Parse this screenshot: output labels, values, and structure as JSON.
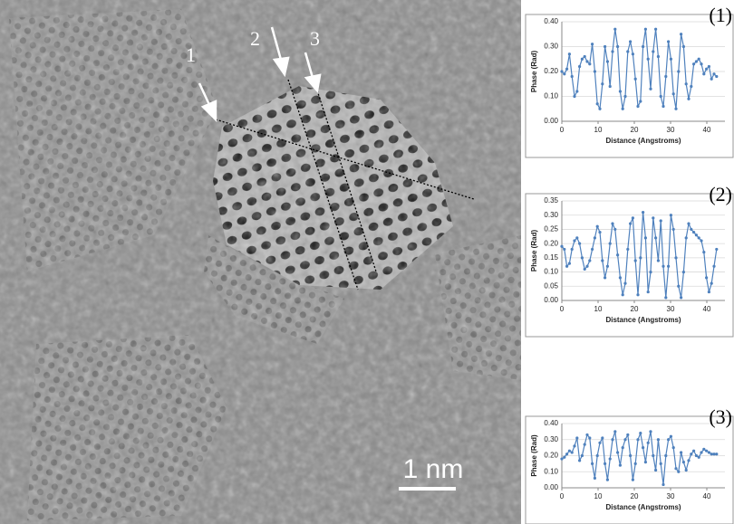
{
  "image": {
    "line_labels": [
      "1",
      "2",
      "3"
    ],
    "scale_bar": "1 nm"
  },
  "chart_data": [
    {
      "type": "line",
      "panel_label": "(1)",
      "x_label": "Distance (Angstroms)",
      "y_label": "Phase (Rad)",
      "xlim": [
        0,
        45
      ],
      "xticks": [
        0,
        10,
        20,
        30,
        40
      ],
      "ylim": [
        0,
        0.4
      ],
      "yticks": [
        {
          "value": 0,
          "label": "0.00"
        },
        {
          "value": 0.1,
          "label": "0.10"
        },
        {
          "value": 0.2,
          "label": "0.20"
        },
        {
          "value": 0.3,
          "label": "0.30"
        },
        {
          "value": 0.4,
          "label": "0.40"
        }
      ],
      "x": [
        0,
        0.7,
        1.4,
        2.1,
        2.8,
        3.5,
        4.2,
        4.9,
        5.6,
        6.3,
        7.0,
        7.7,
        8.4,
        9.1,
        9.8,
        10.5,
        11.2,
        11.9,
        12.6,
        13.3,
        14.0,
        14.7,
        15.4,
        16.1,
        16.8,
        17.5,
        18.2,
        18.9,
        19.6,
        20.3,
        21.0,
        21.7,
        22.4,
        23.1,
        23.8,
        24.5,
        25.2,
        25.9,
        26.6,
        27.3,
        28.0,
        28.7,
        29.4,
        30.1,
        30.8,
        31.5,
        32.2,
        32.9,
        33.6,
        34.3,
        35.0,
        35.7,
        36.4,
        37.1,
        37.8,
        38.5,
        39.2,
        39.9,
        40.6,
        41.3,
        42.0,
        42.7
      ],
      "series": [
        {
          "color": "#4f81bd",
          "values": [
            0.2,
            0.19,
            0.21,
            0.27,
            0.18,
            0.1,
            0.12,
            0.22,
            0.25,
            0.26,
            0.24,
            0.23,
            0.31,
            0.2,
            0.07,
            0.05,
            0.15,
            0.3,
            0.24,
            0.14,
            0.28,
            0.37,
            0.3,
            0.12,
            0.05,
            0.1,
            0.28,
            0.32,
            0.27,
            0.17,
            0.06,
            0.08,
            0.3,
            0.37,
            0.25,
            0.13,
            0.28,
            0.37,
            0.26,
            0.1,
            0.06,
            0.18,
            0.32,
            0.25,
            0.11,
            0.05,
            0.2,
            0.35,
            0.3,
            0.15,
            0.09,
            0.14,
            0.23,
            0.24,
            0.25,
            0.23,
            0.19,
            0.21,
            0.22,
            0.17,
            0.19,
            0.18
          ]
        }
      ]
    },
    {
      "type": "line",
      "panel_label": "(2)",
      "x_label": "Distance (Angstroms)",
      "y_label": "Phase (Rad)",
      "xlim": [
        0,
        45
      ],
      "xticks": [
        0,
        10,
        20,
        30,
        40
      ],
      "ylim": [
        0,
        0.35
      ],
      "yticks": [
        {
          "value": 0,
          "label": "0.00"
        },
        {
          "value": 0.05,
          "label": "0.05"
        },
        {
          "value": 0.1,
          "label": "0.10"
        },
        {
          "value": 0.15,
          "label": "0.15"
        },
        {
          "value": 0.2,
          "label": "0.20"
        },
        {
          "value": 0.25,
          "label": "0.25"
        },
        {
          "value": 0.3,
          "label": "0.30"
        },
        {
          "value": 0.35,
          "label": "0.35"
        }
      ],
      "x": [
        0,
        0.7,
        1.4,
        2.1,
        2.8,
        3.5,
        4.2,
        4.9,
        5.6,
        6.3,
        7.0,
        7.7,
        8.4,
        9.1,
        9.8,
        10.5,
        11.2,
        11.9,
        12.6,
        13.3,
        14.0,
        14.7,
        15.4,
        16.1,
        16.8,
        17.5,
        18.2,
        18.9,
        19.6,
        20.3,
        21.0,
        21.7,
        22.4,
        23.1,
        23.8,
        24.5,
        25.2,
        25.9,
        26.6,
        27.3,
        28.0,
        28.7,
        29.4,
        30.1,
        30.8,
        31.5,
        32.2,
        32.9,
        33.6,
        34.3,
        35.0,
        35.7,
        36.4,
        37.1,
        37.8,
        38.5,
        39.2,
        39.9,
        40.6,
        41.3,
        42.0,
        42.7
      ],
      "series": [
        {
          "color": "#4f81bd",
          "values": [
            0.19,
            0.18,
            0.12,
            0.13,
            0.18,
            0.21,
            0.22,
            0.2,
            0.15,
            0.11,
            0.12,
            0.14,
            0.18,
            0.22,
            0.26,
            0.24,
            0.14,
            0.08,
            0.12,
            0.2,
            0.27,
            0.25,
            0.16,
            0.08,
            0.02,
            0.06,
            0.18,
            0.27,
            0.29,
            0.14,
            0.02,
            0.15,
            0.31,
            0.22,
            0.03,
            0.1,
            0.29,
            0.22,
            0.14,
            0.28,
            0.12,
            0.01,
            0.12,
            0.3,
            0.25,
            0.15,
            0.05,
            0.01,
            0.1,
            0.22,
            0.27,
            0.25,
            0.24,
            0.23,
            0.22,
            0.21,
            0.17,
            0.08,
            0.03,
            0.06,
            0.12,
            0.18
          ]
        }
      ]
    },
    {
      "type": "line",
      "panel_label": "(3)",
      "x_label": "Distance (Angstroms)",
      "y_label": "Phase (Rad)",
      "xlim": [
        0,
        45
      ],
      "xticks": [
        0,
        10,
        20,
        30,
        40
      ],
      "ylim": [
        0,
        0.4
      ],
      "yticks": [
        {
          "value": 0,
          "label": "0.00"
        },
        {
          "value": 0.1,
          "label": "0.10"
        },
        {
          "value": 0.2,
          "label": "0.20"
        },
        {
          "value": 0.3,
          "label": "0.30"
        },
        {
          "value": 0.4,
          "label": "0.40"
        }
      ],
      "x": [
        0,
        0.7,
        1.4,
        2.1,
        2.8,
        3.5,
        4.2,
        4.9,
        5.6,
        6.3,
        7.0,
        7.7,
        8.4,
        9.1,
        9.8,
        10.5,
        11.2,
        11.9,
        12.6,
        13.3,
        14.0,
        14.7,
        15.4,
        16.1,
        16.8,
        17.5,
        18.2,
        18.9,
        19.6,
        20.3,
        21.0,
        21.7,
        22.4,
        23.1,
        23.8,
        24.5,
        25.2,
        25.9,
        26.6,
        27.3,
        28.0,
        28.7,
        29.4,
        30.1,
        30.8,
        31.5,
        32.2,
        32.9,
        33.6,
        34.3,
        35.0,
        35.7,
        36.4,
        37.1,
        37.8,
        38.5,
        39.2,
        39.9,
        40.6,
        41.3,
        42.0,
        42.7
      ],
      "series": [
        {
          "color": "#4f81bd",
          "values": [
            0.18,
            0.19,
            0.21,
            0.23,
            0.22,
            0.26,
            0.31,
            0.17,
            0.2,
            0.27,
            0.33,
            0.31,
            0.15,
            0.06,
            0.2,
            0.28,
            0.31,
            0.15,
            0.05,
            0.18,
            0.3,
            0.35,
            0.22,
            0.14,
            0.25,
            0.3,
            0.33,
            0.2,
            0.05,
            0.15,
            0.3,
            0.34,
            0.25,
            0.16,
            0.28,
            0.35,
            0.2,
            0.11,
            0.3,
            0.15,
            0.02,
            0.2,
            0.3,
            0.32,
            0.25,
            0.12,
            0.1,
            0.22,
            0.16,
            0.11,
            0.17,
            0.21,
            0.23,
            0.2,
            0.19,
            0.22,
            0.24,
            0.23,
            0.22,
            0.21,
            0.21,
            0.21
          ]
        }
      ]
    }
  ]
}
